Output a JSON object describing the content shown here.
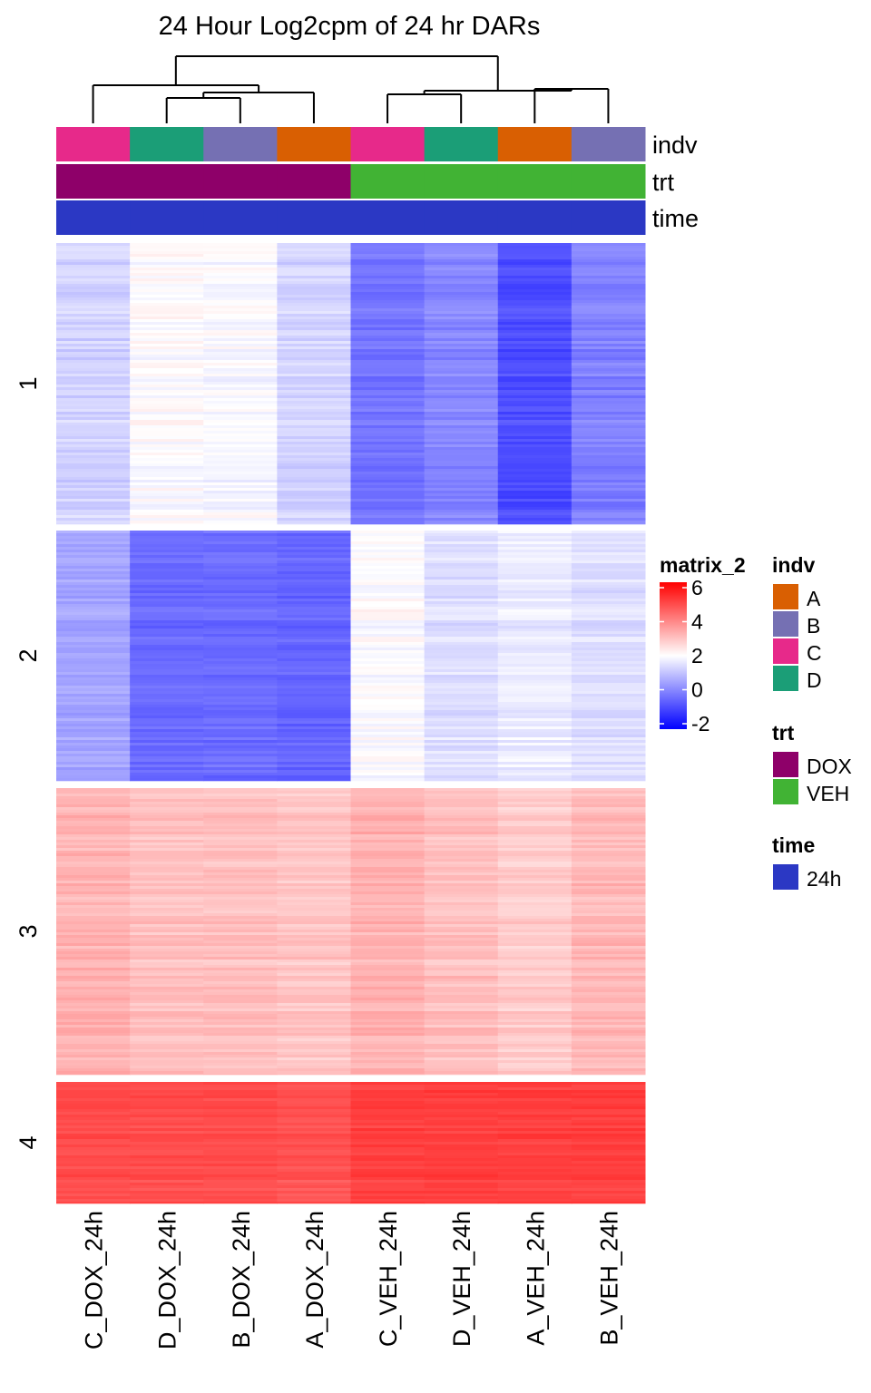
{
  "chart_data": {
    "type": "heatmap",
    "title": "24 Hour Log2cpm of 24 hr DARs",
    "columns": [
      "C_DOX_24h",
      "D_DOX_24h",
      "B_DOX_24h",
      "A_DOX_24h",
      "C_VEH_24h",
      "D_VEH_24h",
      "A_VEH_24h",
      "B_VEH_24h"
    ],
    "annotations": {
      "indv": [
        "C",
        "D",
        "B",
        "A",
        "C",
        "D",
        "A",
        "B"
      ],
      "trt": [
        "DOX",
        "DOX",
        "DOX",
        "DOX",
        "VEH",
        "VEH",
        "VEH",
        "VEH"
      ],
      "time": [
        "24h",
        "24h",
        "24h",
        "24h",
        "24h",
        "24h",
        "24h",
        "24h"
      ]
    },
    "annotation_names": [
      "indv",
      "trt",
      "time"
    ],
    "row_slices": [
      {
        "label": "1",
        "mean_values": [
          1.3,
          2.0,
          1.9,
          1.3,
          -0.2,
          0.1,
          -0.8,
          0.0
        ]
      },
      {
        "label": "2",
        "mean_values": [
          0.6,
          -0.3,
          -0.3,
          -0.4,
          2.0,
          1.5,
          1.7,
          1.5
        ]
      },
      {
        "label": "3",
        "mean_values": [
          3.2,
          3.0,
          3.0,
          2.9,
          3.2,
          3.0,
          2.8,
          3.1
        ]
      },
      {
        "label": "4",
        "mean_values": [
          4.8,
          4.8,
          4.8,
          4.7,
          5.0,
          5.0,
          5.0,
          5.0
        ]
      }
    ],
    "legend": {
      "title": "matrix_2",
      "ticks": [
        6,
        4,
        2,
        0,
        -2
      ],
      "range": [
        -2,
        6
      ],
      "color_stops": [
        {
          "value": -2,
          "color": "#0000FF"
        },
        {
          "value": 2,
          "color": "#FFFFFF"
        },
        {
          "value": 6,
          "color": "#FF0000"
        }
      ]
    },
    "annotation_legends": [
      {
        "title": "indv",
        "items": [
          {
            "label": "A",
            "color": "#D95F02"
          },
          {
            "label": "B",
            "color": "#7570B3"
          },
          {
            "label": "C",
            "color": "#E7298A"
          },
          {
            "label": "D",
            "color": "#1B9E77"
          }
        ]
      },
      {
        "title": "trt",
        "items": [
          {
            "label": "DOX",
            "color": "#8E0069"
          },
          {
            "label": "VEH",
            "color": "#41B334"
          }
        ]
      },
      {
        "title": "time",
        "items": [
          {
            "label": "24h",
            "color": "#2B38C4"
          }
        ]
      }
    ]
  }
}
